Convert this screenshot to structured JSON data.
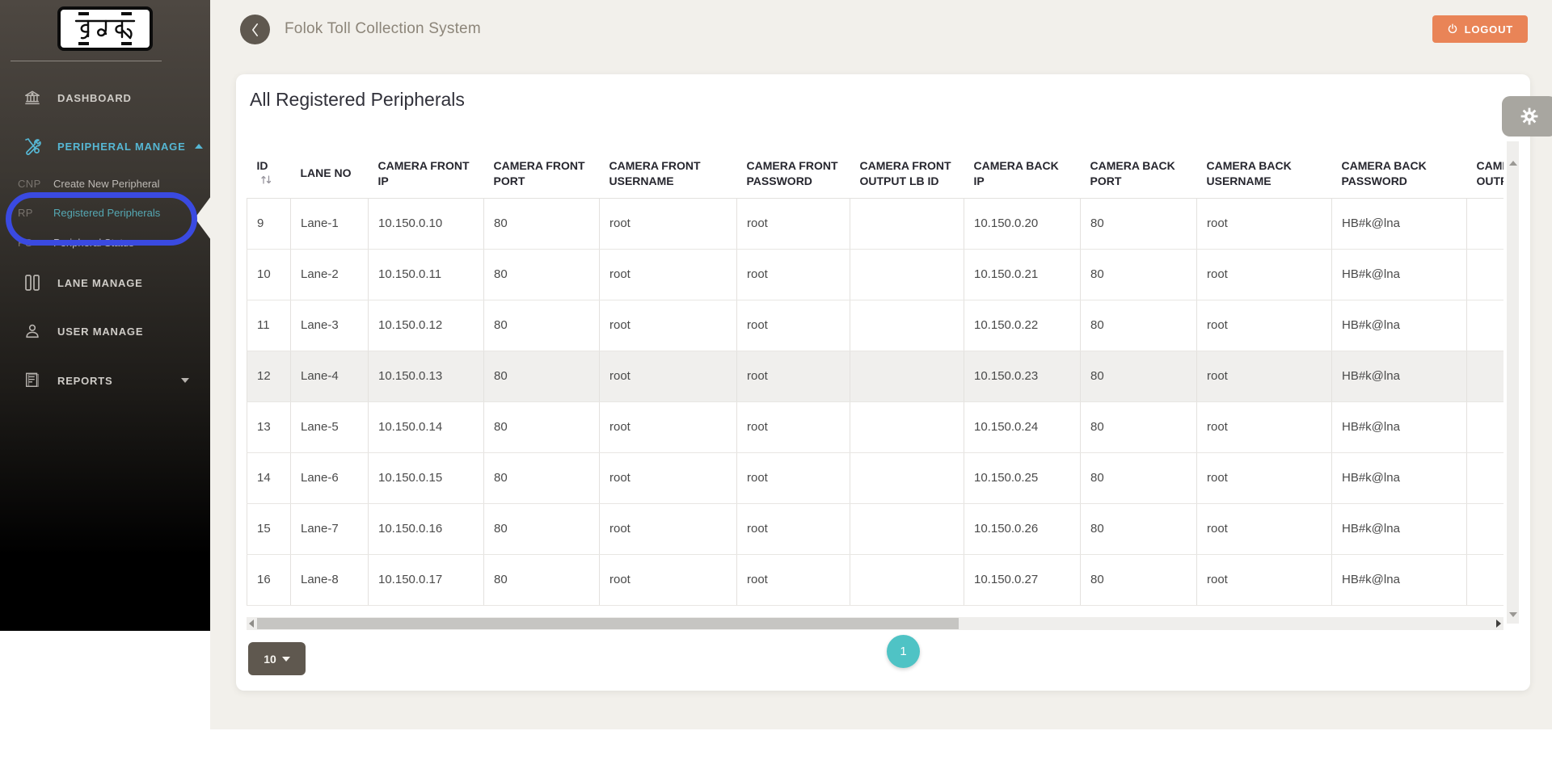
{
  "app": {
    "title": "Folok Toll Collection System",
    "logo_text": "ফলক",
    "logout_label": "LOGOUT"
  },
  "sidebar": {
    "items": [
      {
        "label": "DASHBOARD",
        "icon": "bank-icon"
      },
      {
        "label": "PERIPHERAL MANAGE",
        "icon": "tools-icon",
        "expanded": true,
        "children": [
          {
            "abbr": "CNP",
            "label": "Create New Peripheral"
          },
          {
            "abbr": "RP",
            "label": "Registered Peripherals",
            "active": true
          },
          {
            "abbr": "PS",
            "label": "Peripheral Status"
          }
        ]
      },
      {
        "label": "LANE MANAGE",
        "icon": "lanes-icon"
      },
      {
        "label": "USER MANAGE",
        "icon": "user-icon"
      },
      {
        "label": "REPORTS",
        "icon": "reports-icon",
        "expanded": false
      }
    ]
  },
  "main": {
    "card_title": "All Registered Peripherals",
    "table": {
      "columns": [
        "ID",
        "LANE NO",
        "CAMERA FRONT IP",
        "CAMERA FRONT PORT",
        "CAMERA FRONT USERNAME",
        "CAMERA FRONT PASSWORD",
        "CAMERA FRONT OUTPUT LB ID",
        "CAMERA BACK IP",
        "CAMERA BACK PORT",
        "CAMERA BACK USERNAME",
        "CAMERA BACK PASSWORD",
        "CAMERA BACK OUTPUT LB ID"
      ],
      "rows": [
        [
          "9",
          "Lane-1",
          "10.150.0.10",
          "80",
          "root",
          "root",
          "",
          "10.150.0.20",
          "80",
          "root",
          "HB#k@lna",
          ""
        ],
        [
          "10",
          "Lane-2",
          "10.150.0.11",
          "80",
          "root",
          "root",
          "",
          "10.150.0.21",
          "80",
          "root",
          "HB#k@lna",
          ""
        ],
        [
          "11",
          "Lane-3",
          "10.150.0.12",
          "80",
          "root",
          "root",
          "",
          "10.150.0.22",
          "80",
          "root",
          "HB#k@lna",
          ""
        ],
        [
          "12",
          "Lane-4",
          "10.150.0.13",
          "80",
          "root",
          "root",
          "",
          "10.150.0.23",
          "80",
          "root",
          "HB#k@lna",
          ""
        ],
        [
          "13",
          "Lane-5",
          "10.150.0.14",
          "80",
          "root",
          "root",
          "",
          "10.150.0.24",
          "80",
          "root",
          "HB#k@lna",
          ""
        ],
        [
          "14",
          "Lane-6",
          "10.150.0.15",
          "80",
          "root",
          "root",
          "",
          "10.150.0.25",
          "80",
          "root",
          "HB#k@lna",
          ""
        ],
        [
          "15",
          "Lane-7",
          "10.150.0.16",
          "80",
          "root",
          "root",
          "",
          "10.150.0.26",
          "80",
          "root",
          "HB#k@lna",
          ""
        ],
        [
          "16",
          "Lane-8",
          "10.150.0.17",
          "80",
          "root",
          "root",
          "",
          "10.150.0.27",
          "80",
          "root",
          "HB#k@lna",
          ""
        ]
      ],
      "highlighted_row_id": "12"
    },
    "pagination": {
      "page_size": "10",
      "current_page": "1"
    }
  },
  "colors": {
    "accent_teal": "#4fc3c5",
    "accent_blue": "#56b7d4",
    "logout_orange": "#e98457",
    "annotation_blue": "#3a4ae1",
    "sidebar_dark": "#4e4842",
    "page_cream": "#f2f0eb"
  }
}
